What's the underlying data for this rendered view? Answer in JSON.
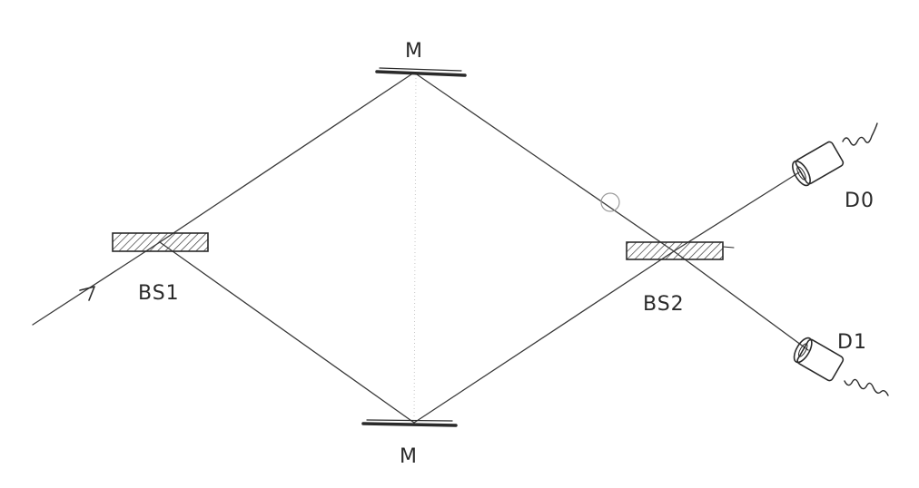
{
  "labels": {
    "mirror_top": "M",
    "mirror_bottom": "M",
    "beam_splitter_1": "BS1",
    "beam_splitter_2": "BS2",
    "detector_0": "D0",
    "detector_1": "D1"
  },
  "colors": {
    "ink": "#2a2a2a",
    "hatch": "#3a3a3a",
    "paper": "#ffffff"
  },
  "icons": {
    "input_arrow": "arrow-right-up-icon",
    "detector": "detector-icon"
  }
}
